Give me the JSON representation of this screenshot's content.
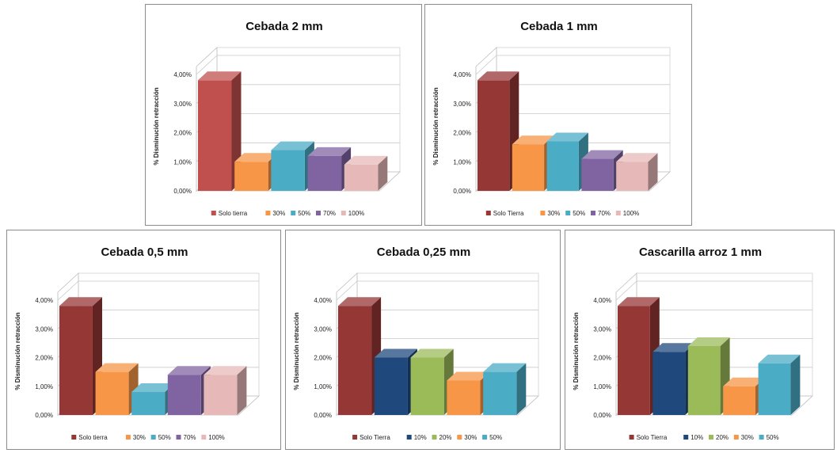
{
  "chart_data": [
    {
      "type": "bar",
      "title": "Cebada 2 mm",
      "ylabel": "% Disminución retracción",
      "yticks": [
        "0,00%",
        "1,00%",
        "2,00%",
        "3,00%",
        "4,00%"
      ],
      "ylim": [
        0,
        4
      ],
      "legend_position": "bottom",
      "series": [
        {
          "name": "Solo tierra",
          "value": 3.8,
          "color": "#c0504d"
        },
        {
          "name": "30%",
          "value": 1.0,
          "color": "#f79646"
        },
        {
          "name": "50%",
          "value": 1.4,
          "color": "#4bacc6"
        },
        {
          "name": "70%",
          "value": 1.2,
          "color": "#8064a2"
        },
        {
          "name": "100%",
          "value": 0.9,
          "color": "#e6b9b8"
        }
      ]
    },
    {
      "type": "bar",
      "title": "Cebada 1 mm",
      "ylabel": "% Disminución retracción",
      "yticks": [
        "0,00%",
        "1,00%",
        "2,00%",
        "3,00%",
        "4,00%"
      ],
      "ylim": [
        0,
        4
      ],
      "legend_position": "bottom",
      "series": [
        {
          "name": "Solo Tierra",
          "value": 3.8,
          "color": "#953735"
        },
        {
          "name": "30%",
          "value": 1.6,
          "color": "#f79646"
        },
        {
          "name": "50%",
          "value": 1.7,
          "color": "#4bacc6"
        },
        {
          "name": "70%",
          "value": 1.1,
          "color": "#8064a2"
        },
        {
          "name": "100%",
          "value": 1.0,
          "color": "#e6b9b8"
        }
      ]
    },
    {
      "type": "bar",
      "title": "Cebada 0,5 mm",
      "ylabel": "% Disminución retracción",
      "yticks": [
        "0,00%",
        "1,00%",
        "2,00%",
        "3,00%",
        "4,00%"
      ],
      "ylim": [
        0,
        4
      ],
      "legend_position": "bottom",
      "series": [
        {
          "name": "Solo tierra",
          "value": 3.8,
          "color": "#953735"
        },
        {
          "name": "30%",
          "value": 1.5,
          "color": "#f79646"
        },
        {
          "name": "50%",
          "value": 0.8,
          "color": "#4bacc6"
        },
        {
          "name": "70%",
          "value": 1.4,
          "color": "#8064a2"
        },
        {
          "name": "100%",
          "value": 1.4,
          "color": "#e6b9b8"
        }
      ]
    },
    {
      "type": "bar",
      "title": "Cebada 0,25 mm",
      "ylabel": "% Disminución retracción",
      "yticks": [
        "0,00%",
        "1,00%",
        "2,00%",
        "3,00%",
        "4,00%"
      ],
      "ylim": [
        0,
        4
      ],
      "legend_position": "bottom",
      "series": [
        {
          "name": "Solo Tierra",
          "value": 3.8,
          "color": "#953735"
        },
        {
          "name": "10%",
          "value": 2.0,
          "color": "#1f497d"
        },
        {
          "name": "20%",
          "value": 2.0,
          "color": "#9bbb59"
        },
        {
          "name": "30%",
          "value": 1.2,
          "color": "#f79646"
        },
        {
          "name": "50%",
          "value": 1.5,
          "color": "#4bacc6"
        }
      ]
    },
    {
      "type": "bar",
      "title": "Cascarilla arroz 1 mm",
      "ylabel": "% Disminución retracción",
      "yticks": [
        "0,00%",
        "1,00%",
        "2,00%",
        "3,00%",
        "4,00%"
      ],
      "ylim": [
        0,
        4
      ],
      "legend_position": "bottom",
      "series": [
        {
          "name": "Solo Tierra",
          "value": 3.8,
          "color": "#953735"
        },
        {
          "name": "10%",
          "value": 2.2,
          "color": "#1f497d"
        },
        {
          "name": "20%",
          "value": 2.4,
          "color": "#9bbb59"
        },
        {
          "name": "30%",
          "value": 1.0,
          "color": "#f79646"
        },
        {
          "name": "50%",
          "value": 1.8,
          "color": "#4bacc6"
        }
      ]
    }
  ]
}
